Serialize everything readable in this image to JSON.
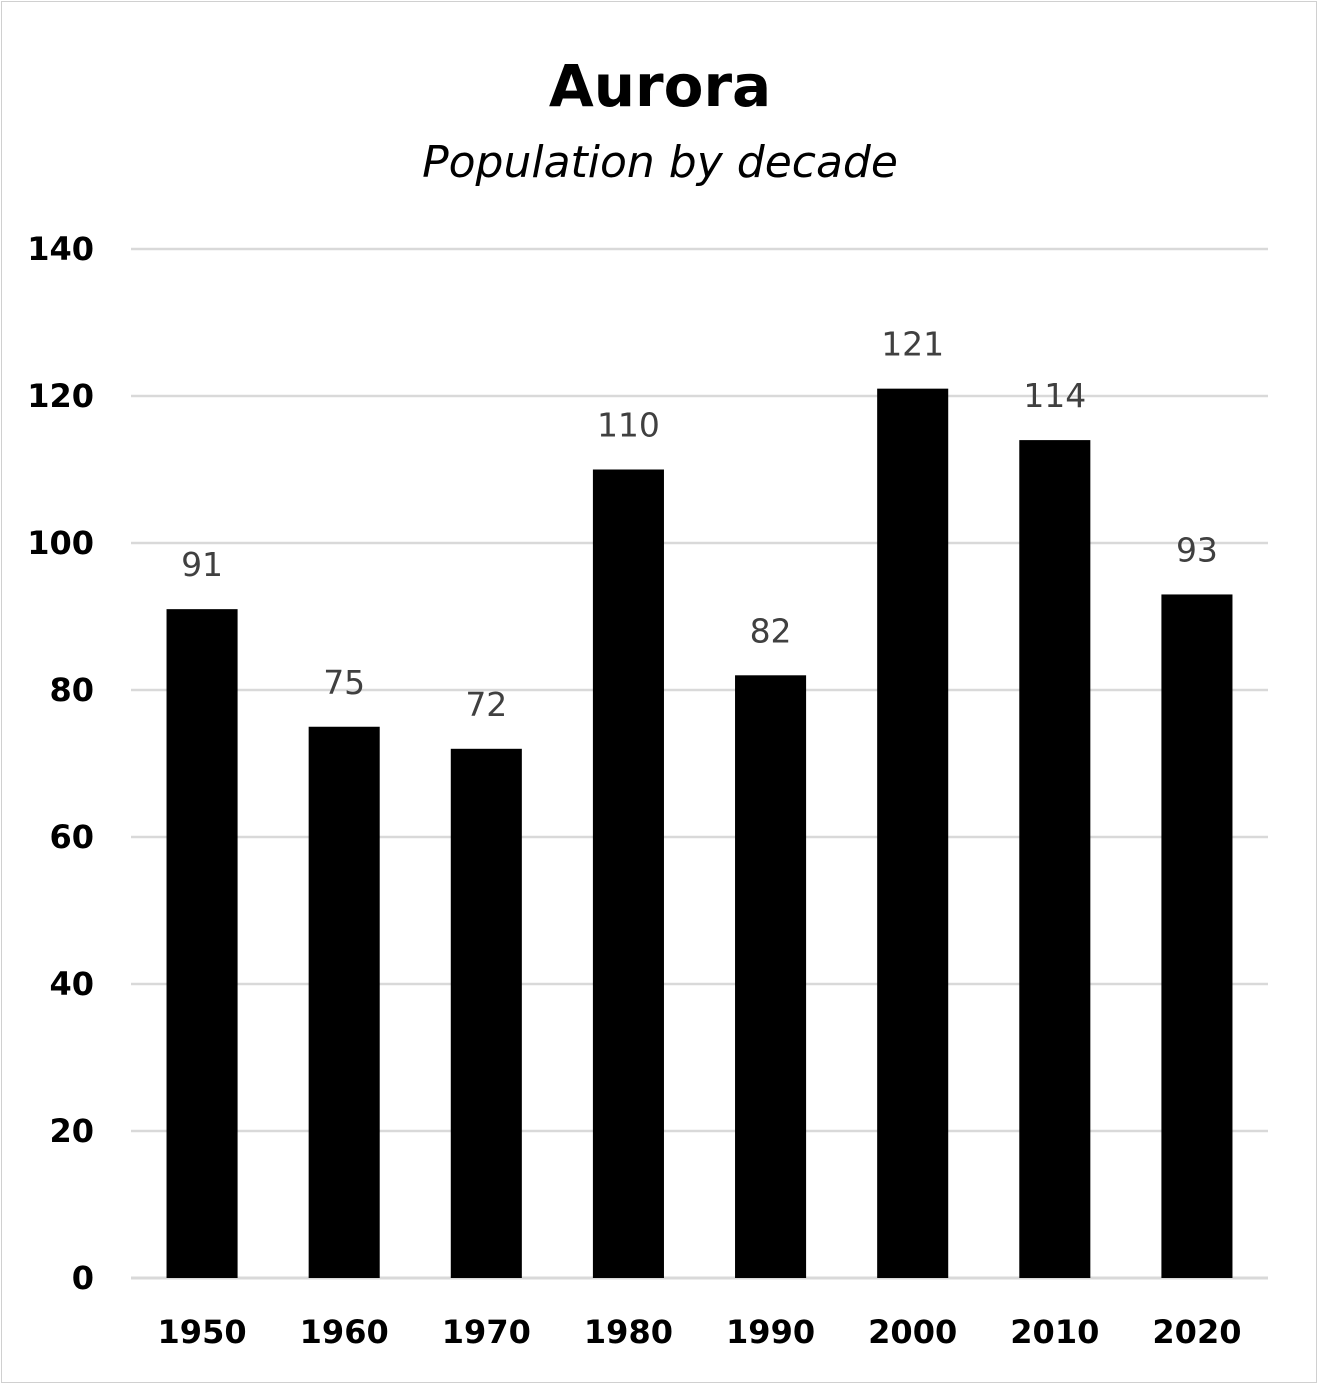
{
  "chart_data": {
    "type": "bar",
    "title": "Aurora",
    "subtitle": "Population by decade",
    "xlabel": "",
    "ylabel": "",
    "categories": [
      "1950",
      "1960",
      "1970",
      "1980",
      "1990",
      "2000",
      "2010",
      "2020"
    ],
    "values": [
      91,
      75,
      72,
      110,
      82,
      121,
      114,
      93
    ],
    "data_labels": [
      "91",
      "75",
      "72",
      "110",
      "82",
      "121",
      "114",
      "93"
    ],
    "ylim": [
      0,
      140
    ],
    "yticks": [
      "0",
      "20",
      "40",
      "60",
      "80",
      "100",
      "120",
      "140"
    ],
    "grid": true,
    "legend": "none",
    "bar_color": "#000000",
    "data_label_color": "#404040",
    "grid_color": "#d9d9d9"
  }
}
